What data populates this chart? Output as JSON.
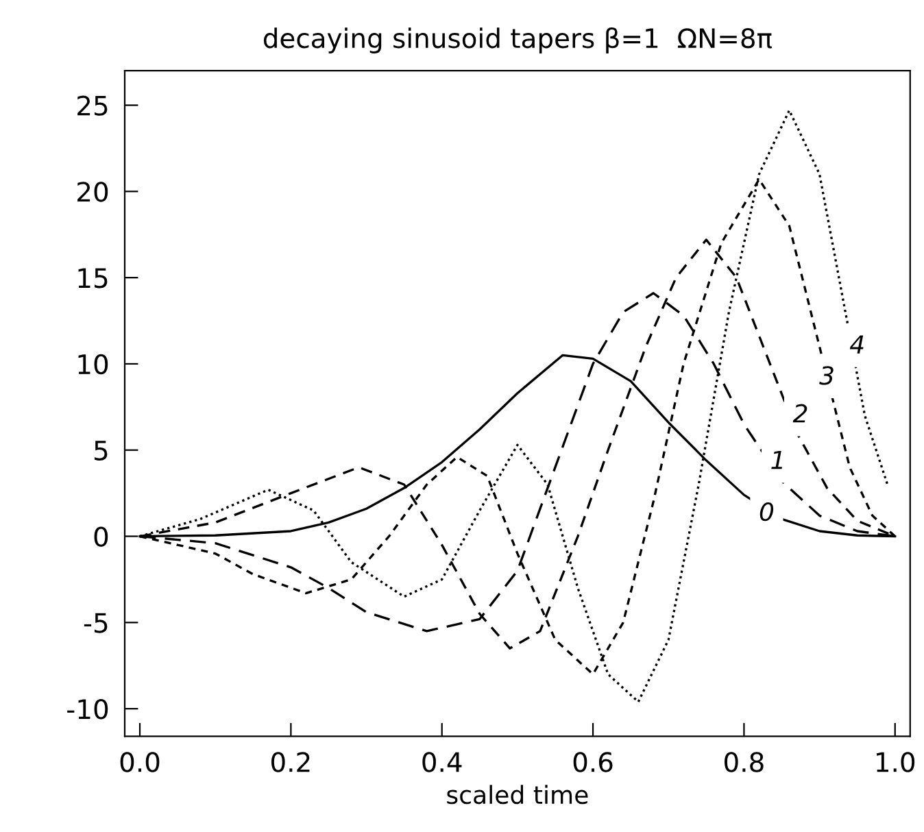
{
  "chart_data": {
    "type": "line",
    "title": "decaying sinusoid tapers β=1  ΩN=8π",
    "xlabel": "scaled time",
    "xlim": [
      -0.02,
      1.02
    ],
    "ylim": [
      -11.6,
      27
    ],
    "xticks": [
      {
        "value": 0,
        "label": "0.0"
      },
      {
        "value": 0.2,
        "label": "0.2"
      },
      {
        "value": 0.4,
        "label": "0.4"
      },
      {
        "value": 0.6,
        "label": "0.6"
      },
      {
        "value": 0.8,
        "label": "0.8"
      },
      {
        "value": 1,
        "label": "1.0"
      }
    ],
    "yticks": [
      -10,
      -5,
      0,
      5,
      10,
      15,
      20,
      25
    ],
    "grid": false,
    "legend": false,
    "marker": "none",
    "series": [
      {
        "color": "#000000",
        "line_style": "solid",
        "x": [
          0,
          0.1,
          0.2,
          0.25,
          0.3,
          0.35,
          0.4,
          0.45,
          0.5,
          0.56,
          0.6,
          0.65,
          0.7,
          0.75,
          0.8,
          0.85,
          0.9,
          0.95,
          1.0
        ],
        "values": [
          0,
          0.05,
          0.3,
          0.8,
          1.6,
          2.8,
          4.3,
          6.2,
          8.3,
          10.5,
          10.3,
          9.0,
          6.6,
          4.4,
          2.4,
          1.0,
          0.3,
          0.05,
          0
        ]
      },
      {
        "color": "#000000",
        "line_style": "dashed",
        "x": [
          0,
          0.1,
          0.2,
          0.25,
          0.3,
          0.38,
          0.45,
          0.5,
          0.55,
          0.6,
          0.64,
          0.68,
          0.72,
          0.76,
          0.8,
          0.85,
          0.9,
          0.95,
          1.0
        ],
        "values": [
          0,
          -0.4,
          -1.8,
          -3.0,
          -4.4,
          -5.5,
          -4.8,
          -2,
          4,
          10,
          13,
          14.1,
          12.8,
          10,
          6.5,
          3.2,
          1.2,
          0.3,
          0
        ]
      },
      {
        "color": "#000000",
        "line_style": "dashed",
        "x": [
          0,
          0.1,
          0.2,
          0.29,
          0.35,
          0.4,
          0.45,
          0.49,
          0.53,
          0.58,
          0.62,
          0.67,
          0.71,
          0.75,
          0.79,
          0.83,
          0.87,
          0.91,
          0.95,
          1.0
        ],
        "values": [
          0,
          0.8,
          2.5,
          4,
          3,
          -0.5,
          -4.5,
          -6.5,
          -5.5,
          0,
          5,
          11,
          15,
          17.2,
          15,
          10.5,
          6,
          2.8,
          0.9,
          0
        ]
      },
      {
        "color": "#000000",
        "line_style": "dashed",
        "x": [
          0,
          0.1,
          0.15,
          0.22,
          0.28,
          0.33,
          0.38,
          0.42,
          0.46,
          0.5,
          0.55,
          0.6,
          0.64,
          0.68,
          0.72,
          0.77,
          0.82,
          0.86,
          0.9,
          0.94,
          0.97,
          1.0
        ],
        "values": [
          0,
          -1,
          -2.2,
          -3.3,
          -2.5,
          0,
          3,
          4.6,
          3.5,
          -1,
          -6,
          -8,
          -5,
          2,
          10,
          17,
          20.7,
          18,
          11,
          4,
          1.2,
          0
        ]
      },
      {
        "color": "#000000",
        "line_style": "dotted",
        "x": [
          0,
          0.08,
          0.17,
          0.23,
          0.28,
          0.35,
          0.4,
          0.45,
          0.5,
          0.54,
          0.58,
          0.62,
          0.66,
          0.7,
          0.74,
          0.78,
          0.82,
          0.86,
          0.9,
          0.93,
          0.96,
          0.99
        ],
        "values": [
          0,
          1,
          2.7,
          1.5,
          -1.5,
          -3.5,
          -2.5,
          1.5,
          5.3,
          3,
          -3,
          -8,
          -9.6,
          -6,
          3,
          13,
          21,
          24.7,
          21,
          14,
          7,
          3
        ]
      }
    ],
    "annotations": [
      {
        "text": "0",
        "x": 0.83,
        "y": 1.3
      },
      {
        "text": "1",
        "x": 0.845,
        "y": 4.3
      },
      {
        "text": "2",
        "x": 0.875,
        "y": 7
      },
      {
        "text": "3",
        "x": 0.91,
        "y": 9.2
      },
      {
        "text": "4",
        "x": 0.95,
        "y": 11
      }
    ]
  }
}
